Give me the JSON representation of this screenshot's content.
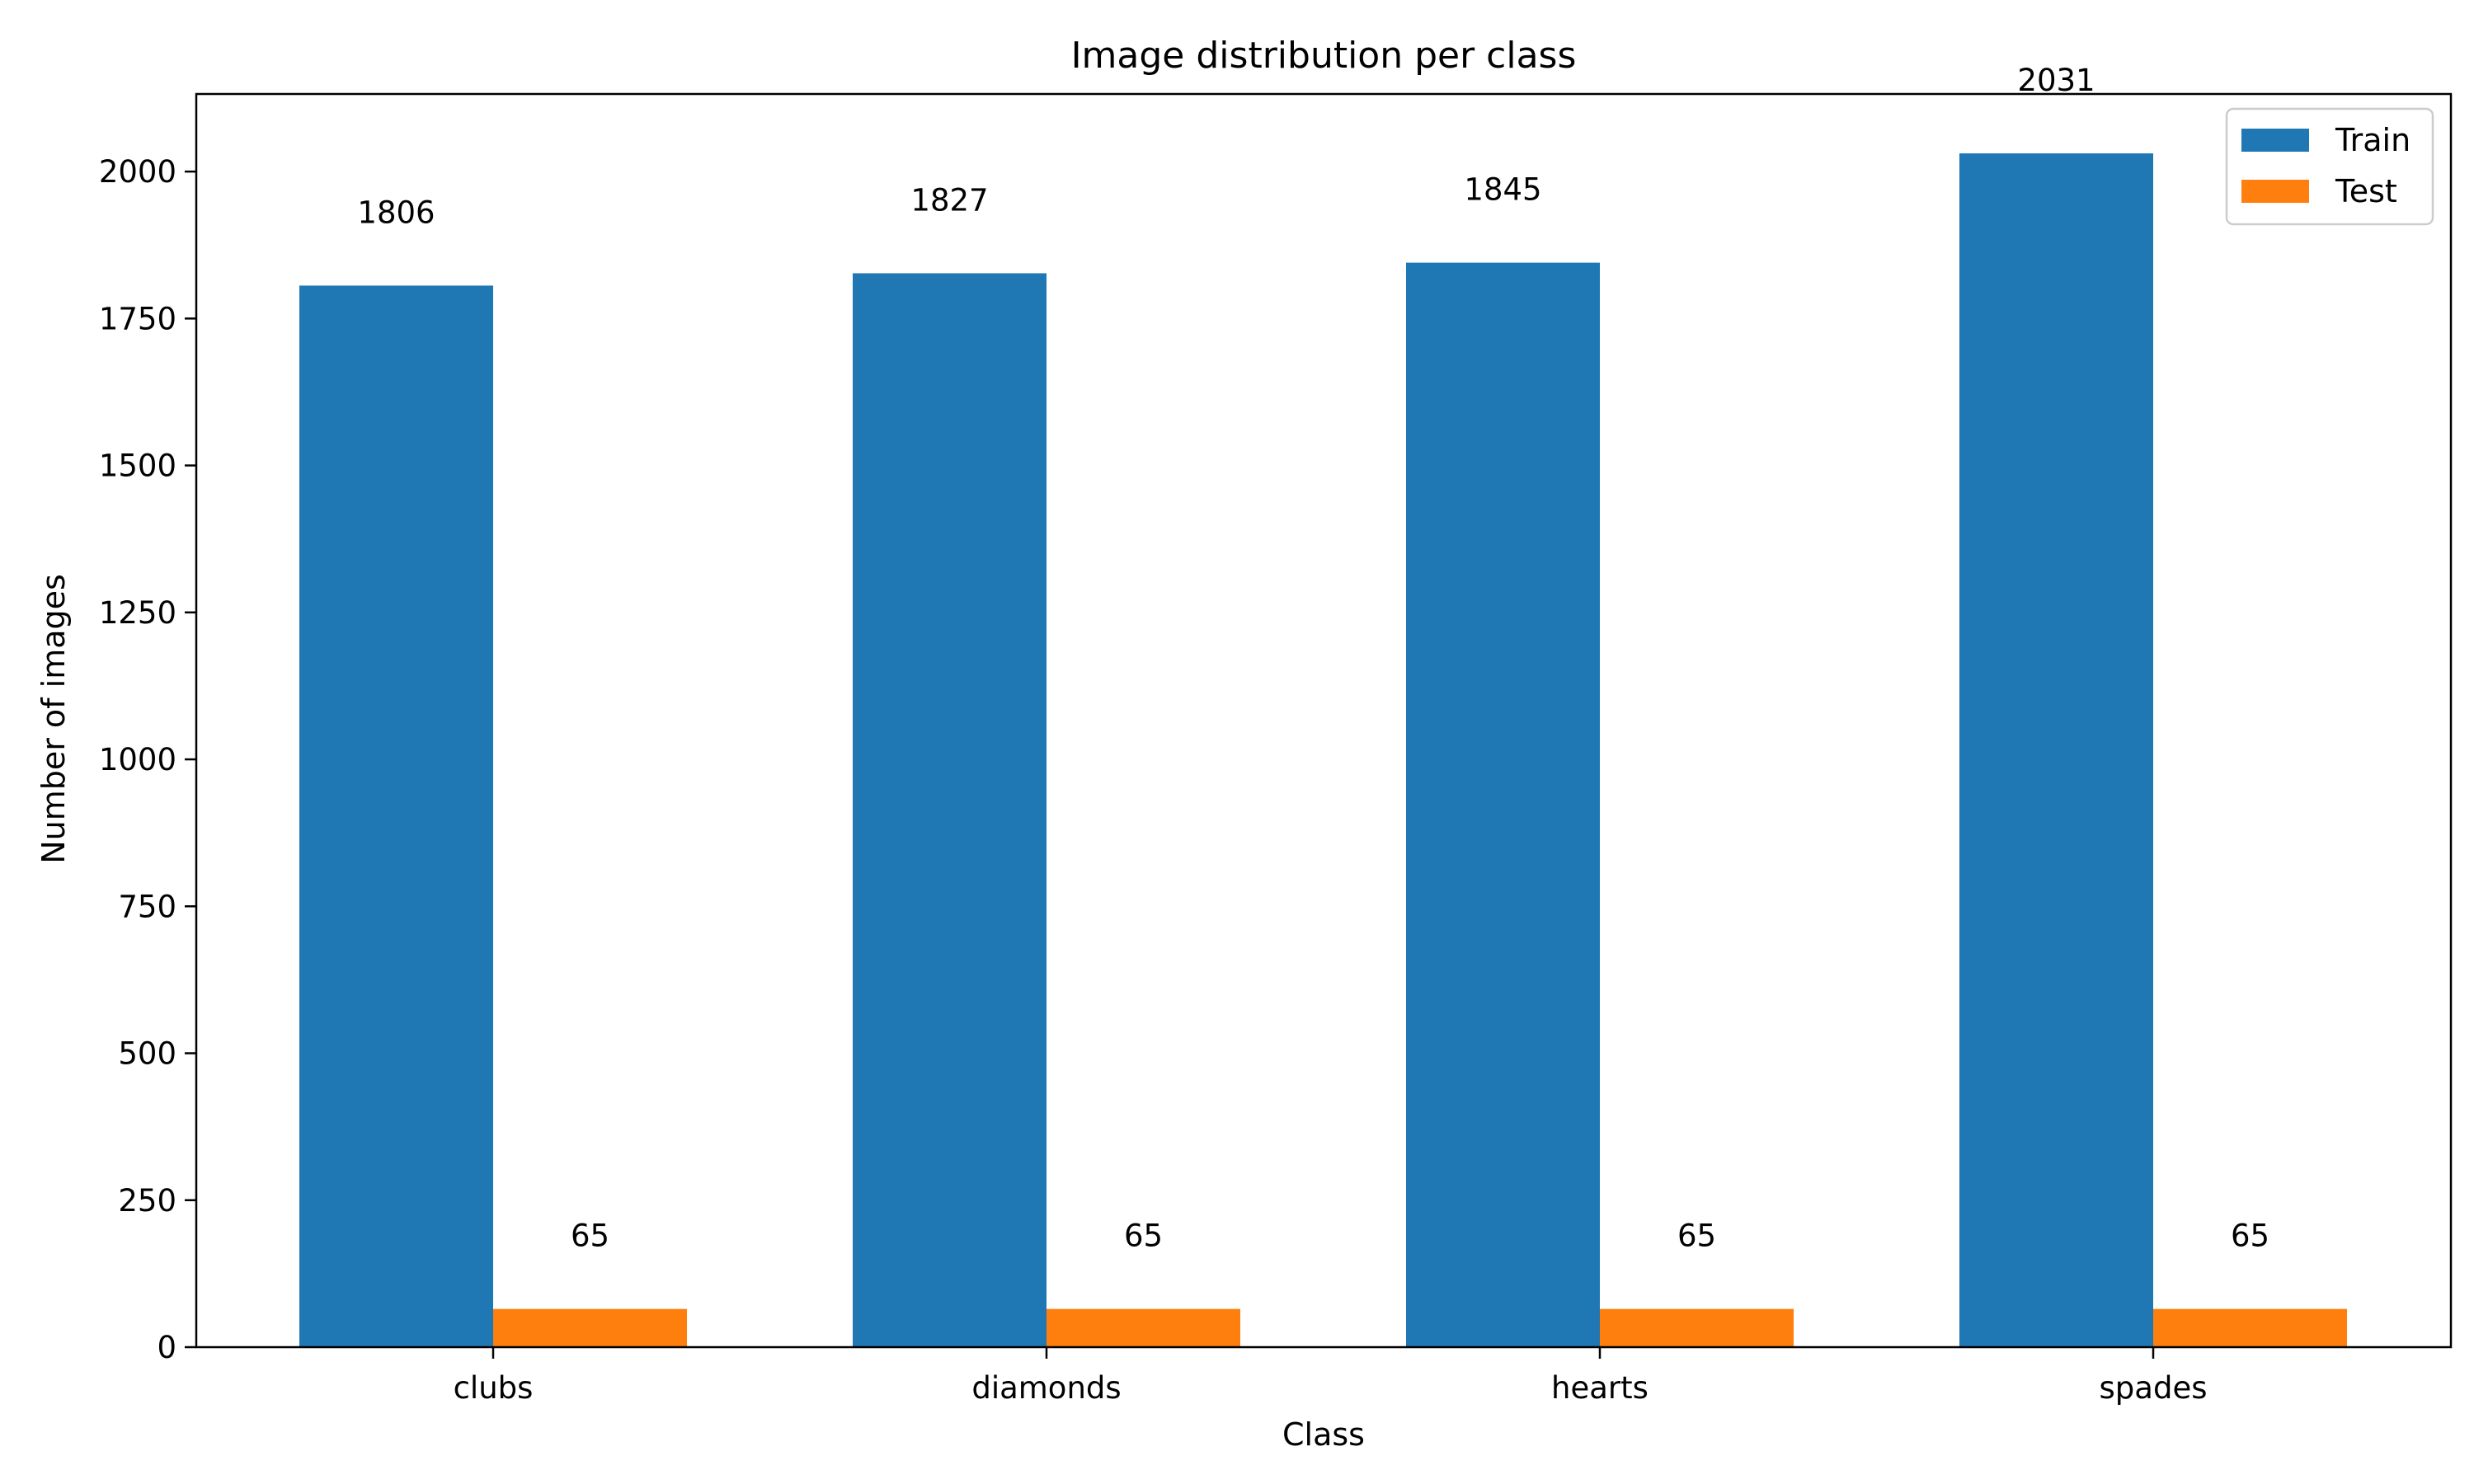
{
  "chart_data": {
    "type": "bar",
    "title": "Image distribution per class",
    "xlabel": "Class",
    "ylabel": "Number of images",
    "categories": [
      "clubs",
      "diamonds",
      "hearts",
      "spades"
    ],
    "series": [
      {
        "name": "Train",
        "values": [
          1806,
          1827,
          1845,
          2031
        ],
        "color": "#1f77b4"
      },
      {
        "name": "Test",
        "values": [
          65,
          65,
          65,
          65
        ],
        "color": "#ff7f0e"
      }
    ],
    "ylim": [
      0,
      2132
    ],
    "yticks": [
      0,
      250,
      500,
      750,
      1000,
      1250,
      1500,
      1750,
      2000
    ],
    "legend": "top-right",
    "grid": false
  }
}
